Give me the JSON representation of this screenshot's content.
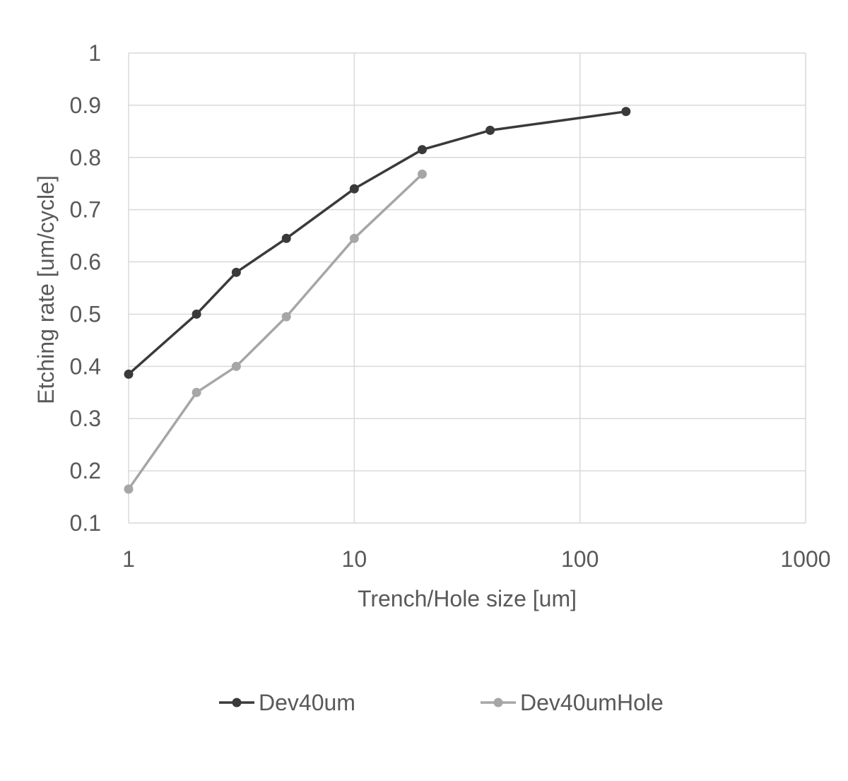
{
  "chart_data": {
    "type": "line",
    "xlabel": "Trench/Hole size [um]",
    "ylabel": "Etching rate [um/cycle]",
    "x_scale": "log",
    "xlim": [
      1,
      1000
    ],
    "ylim": [
      0.1,
      1
    ],
    "x_ticks": [
      "1",
      "10",
      "100",
      "1000"
    ],
    "y_ticks": [
      "0.1",
      "0.2",
      "0.3",
      "0.4",
      "0.5",
      "0.6",
      "0.7",
      "0.8",
      "0.9",
      "1"
    ],
    "grid": true,
    "legend_position": "bottom",
    "series": [
      {
        "name": "Dev40um",
        "color": "#3a3a3a",
        "x": [
          1,
          2,
          3,
          5,
          10,
          20,
          40,
          160
        ],
        "y": [
          0.385,
          0.5,
          0.58,
          0.645,
          0.74,
          0.815,
          0.852,
          0.888
        ]
      },
      {
        "name": "Dev40umHole",
        "color": "#a6a6a6",
        "x": [
          1,
          2,
          3,
          5,
          10,
          20
        ],
        "y": [
          0.165,
          0.35,
          0.4,
          0.495,
          0.645,
          0.768
        ]
      }
    ]
  }
}
